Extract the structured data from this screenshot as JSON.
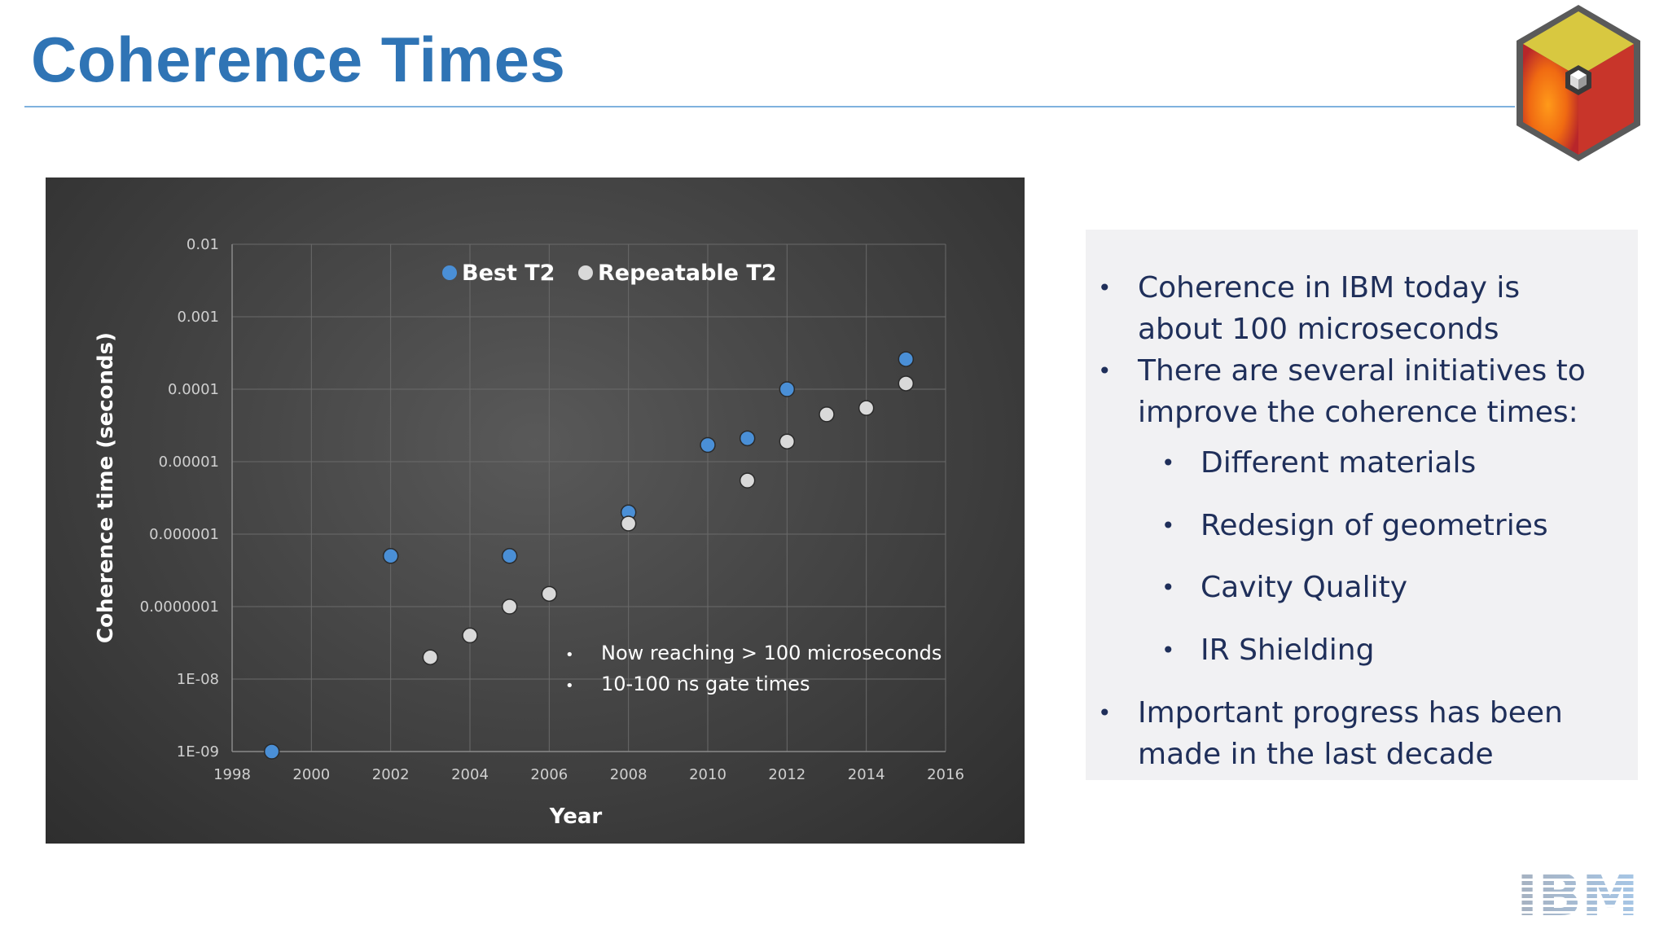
{
  "slide": {
    "title": "Coherence Times",
    "accent_color": "#2f74b5",
    "logo_text": "IBM"
  },
  "bullets": [
    {
      "level": 1,
      "text": "Coherence in IBM today is about 100 microseconds"
    },
    {
      "level": 1,
      "text": "There are several initiatives to improve the coherence times:"
    },
    {
      "level": 2,
      "text": "Different materials"
    },
    {
      "level": 2,
      "text": "Redesign of geometries"
    },
    {
      "level": 2,
      "text": "Cavity Quality"
    },
    {
      "level": 2,
      "text": "IR Shielding"
    },
    {
      "level": 1,
      "text": "Important progress has been made in the last decade"
    }
  ],
  "chart_data": {
    "type": "scatter",
    "title": "",
    "xlabel": "Year",
    "ylabel": "Coherence time (seconds)",
    "xlim": [
      1998,
      2016
    ],
    "ylim": [
      1e-09,
      0.01
    ],
    "yscale": "log",
    "grid": true,
    "legend_position": "top-center",
    "x_ticks": [
      "1998",
      "2000",
      "2002",
      "2004",
      "2006",
      "2008",
      "2010",
      "2012",
      "2014",
      "2016"
    ],
    "y_ticks": [
      "1E-09",
      "1E-08",
      "0.0000001",
      "0.000001",
      "0.00001",
      "0.0001",
      "0.001",
      "0.01"
    ],
    "series": [
      {
        "name": "Best T2",
        "color": "#4a8fd6",
        "points": [
          {
            "x": 1999,
            "y": 1e-09
          },
          {
            "x": 2002,
            "y": 5e-07
          },
          {
            "x": 2005,
            "y": 5e-07
          },
          {
            "x": 2008,
            "y": 2e-06
          },
          {
            "x": 2010,
            "y": 1.7e-05
          },
          {
            "x": 2011,
            "y": 2.1e-05
          },
          {
            "x": 2012,
            "y": 0.0001
          },
          {
            "x": 2015,
            "y": 0.00026
          }
        ]
      },
      {
        "name": "Repeatable T2",
        "color": "#d9d9d9",
        "points": [
          {
            "x": 2003,
            "y": 2e-08
          },
          {
            "x": 2004,
            "y": 4e-08
          },
          {
            "x": 2005,
            "y": 1e-07
          },
          {
            "x": 2006,
            "y": 1.5e-07
          },
          {
            "x": 2008,
            "y": 1.4e-06
          },
          {
            "x": 2011,
            "y": 5.5e-06
          },
          {
            "x": 2012,
            "y": 1.9e-05
          },
          {
            "x": 2013,
            "y": 4.5e-05
          },
          {
            "x": 2014,
            "y": 5.5e-05
          },
          {
            "x": 2015,
            "y": 0.00012
          }
        ]
      }
    ],
    "annotations": [
      "Now reaching > 100 microseconds",
      "10-100 ns gate times"
    ]
  }
}
